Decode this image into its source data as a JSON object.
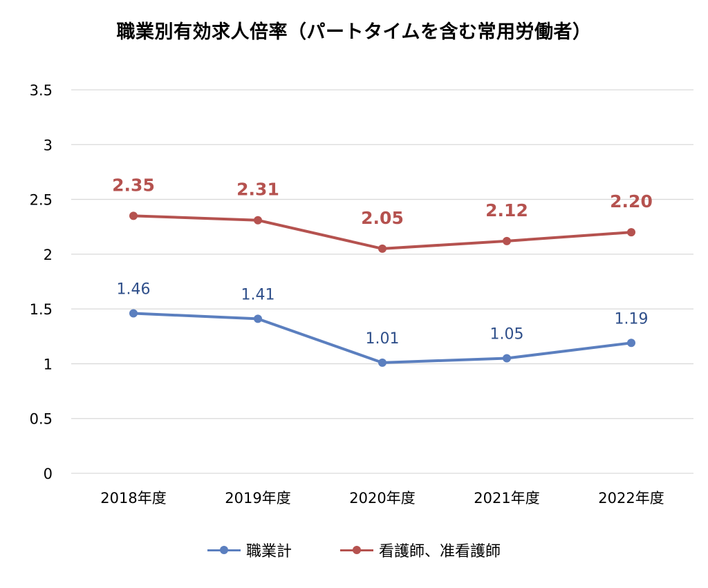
{
  "chart_data": {
    "type": "line",
    "title": "職業別有効求人倍率（パートタイムを含む常用労働者）",
    "categories": [
      "2018年度",
      "2019年度",
      "2020年度",
      "2021年度",
      "2022年度"
    ],
    "series": [
      {
        "name": "職業計",
        "values": [
          1.46,
          1.41,
          1.01,
          1.05,
          1.19
        ],
        "labels": [
          "1.46",
          "1.41",
          "1.01",
          "1.05",
          "1.19"
        ],
        "color": "#5b7fbf",
        "label_color": "#2f4f8a"
      },
      {
        "name": "看護師、准看護師",
        "values": [
          2.35,
          2.31,
          2.05,
          2.12,
          2.2
        ],
        "labels": [
          "2.35",
          "2.31",
          "2.05",
          "2.12",
          "2.20"
        ],
        "color": "#b5524f",
        "label_color": "#b5524f"
      }
    ],
    "ylim": [
      0,
      3.5
    ],
    "yticks": [
      "0",
      "0.5",
      "1",
      "1.5",
      "2",
      "2.5",
      "3",
      "3.5"
    ],
    "ytick_values": [
      0,
      0.5,
      1,
      1.5,
      2,
      2.5,
      3,
      3.5
    ],
    "grid": true,
    "legend_position": "bottom"
  }
}
